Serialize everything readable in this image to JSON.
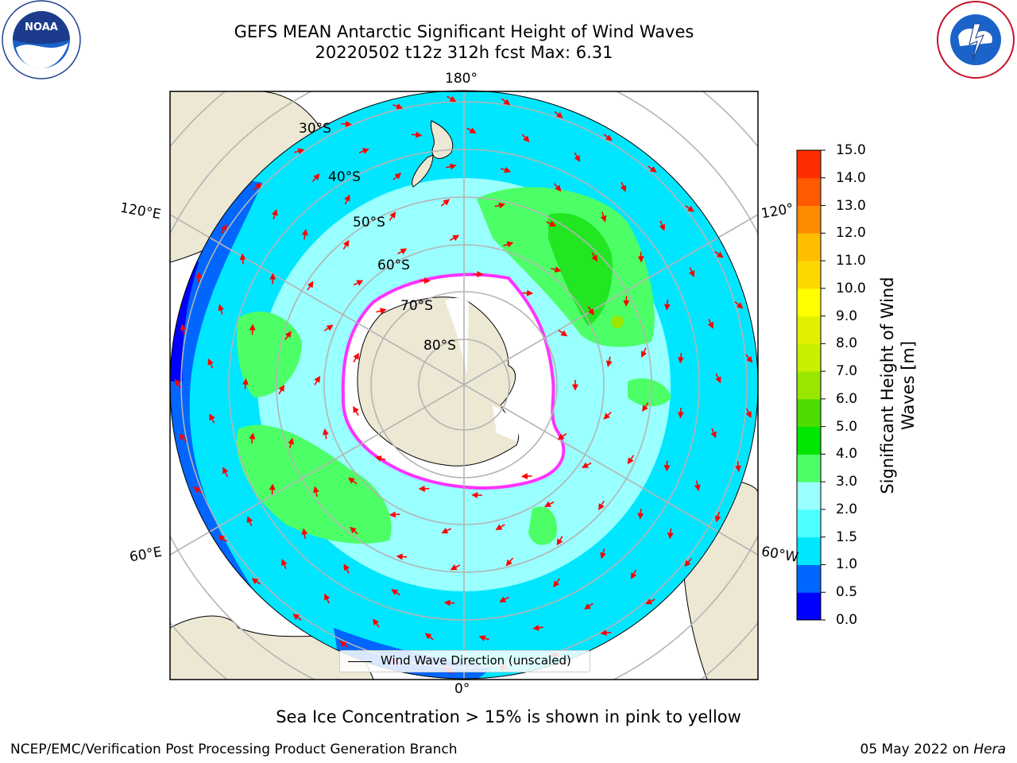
{
  "title_line1": "GEFS MEAN Antarctic Significant Height of Wind Waves",
  "title_line2": "20220502 t12z 312h fcst   Max: 6.31",
  "longitude_labels": {
    "top": "180°",
    "bottom": "0°",
    "left_upper": "120°E",
    "right_upper": "120°",
    "left_lower": "60°E",
    "right_lower": "60°W"
  },
  "latitude_labels": [
    "30°S",
    "40°S",
    "50°S",
    "60°S",
    "70°S",
    "80°S"
  ],
  "colorbar": {
    "label": "Significant Height of Wind Waves [m]",
    "ticks": [
      "15.0",
      "14.0",
      "13.0",
      "12.0",
      "11.0",
      "10.0",
      "9.0",
      "8.0",
      "7.0",
      "6.0",
      "5.0",
      "4.0",
      "3.0",
      "2.0",
      "1.5",
      "1.0",
      "0.5",
      "0.0"
    ],
    "colors_bottom_to_top": [
      "#0000ff",
      "#0066ff",
      "#00e6ff",
      "#4dffff",
      "#99ffff",
      "#4dff66",
      "#00e600",
      "#4ddc00",
      "#99e600",
      "#c8ef00",
      "#e1f000",
      "#ffff00",
      "#ffd700",
      "#ffbf00",
      "#ff8c00",
      "#ff5a00",
      "#ff2d00"
    ]
  },
  "legend_text": "Wind Wave Direction (unscaled)",
  "note": "Sea Ice Concentration > 15% is shown in pink to yellow",
  "credit": "NCEP/EMC/Verification Post Processing Product Generation Branch",
  "date_prefix": "05 May 2022 on ",
  "date_host": "Hera",
  "logos": {
    "left": "NOAA",
    "right": "NATIONAL WEATHER SERVICE"
  },
  "colors": {
    "land": "#ede8d4",
    "arrow": "#ff0000",
    "ice": "#ffffff",
    "ice_edge": "#ff33ff",
    "grid": "#b4b4b4"
  }
}
